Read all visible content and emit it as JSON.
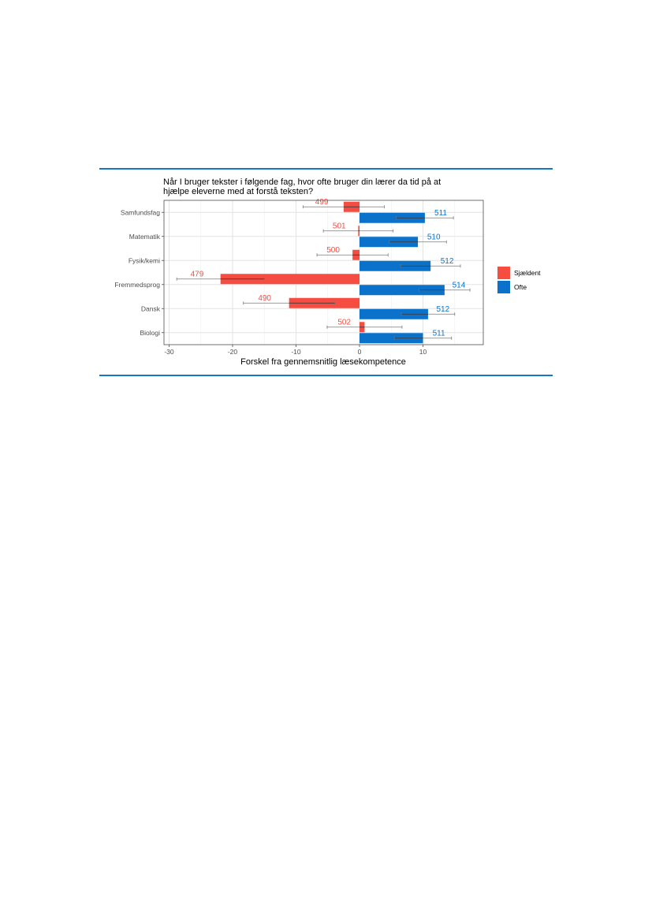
{
  "chart_data": {
    "type": "bar",
    "orientation": "horizontal",
    "title_lines": [
      "Når I bruger tekster i følgende fag, hvor ofte bruger din lærer da tid på at",
      "hjælpe eleverne med at forstå teksten?"
    ],
    "xlabel": "Forskel fra gennemsnitlig læsekompetence",
    "ylabel": "",
    "xlim": [
      -31,
      19.5
    ],
    "xticks": [
      -30,
      -20,
      -10,
      0,
      10
    ],
    "grid": true,
    "legend_position": "right",
    "categories": [
      "Samfundsfag",
      "Matematik",
      "Fysik/kemi",
      "Fremmedsprog",
      "Dansk",
      "Biologi"
    ],
    "series": [
      {
        "name": "Sjældent",
        "color": "#f54d41",
        "values": [
          -2.5,
          -0.2,
          -1.1,
          -21.9,
          -11.1,
          0.8
        ],
        "ci_low": [
          -8.9,
          -5.7,
          -6.7,
          -28.8,
          -18.3,
          -5.1
        ],
        "ci_high": [
          3.9,
          5.3,
          4.5,
          -15.0,
          -3.9,
          6.7
        ],
        "labels": [
          "499",
          "501",
          "500",
          "479",
          "490",
          "502"
        ]
      },
      {
        "name": "Ofte",
        "color": "#0b72cc",
        "values": [
          10.3,
          9.2,
          11.2,
          13.4,
          10.8,
          10.0
        ],
        "ci_low": [
          5.8,
          4.7,
          6.5,
          9.4,
          6.6,
          5.5
        ],
        "ci_high": [
          14.8,
          13.7,
          15.9,
          17.4,
          15.0,
          14.5
        ],
        "labels": [
          "511",
          "510",
          "512",
          "514",
          "512",
          "511"
        ]
      }
    ]
  }
}
